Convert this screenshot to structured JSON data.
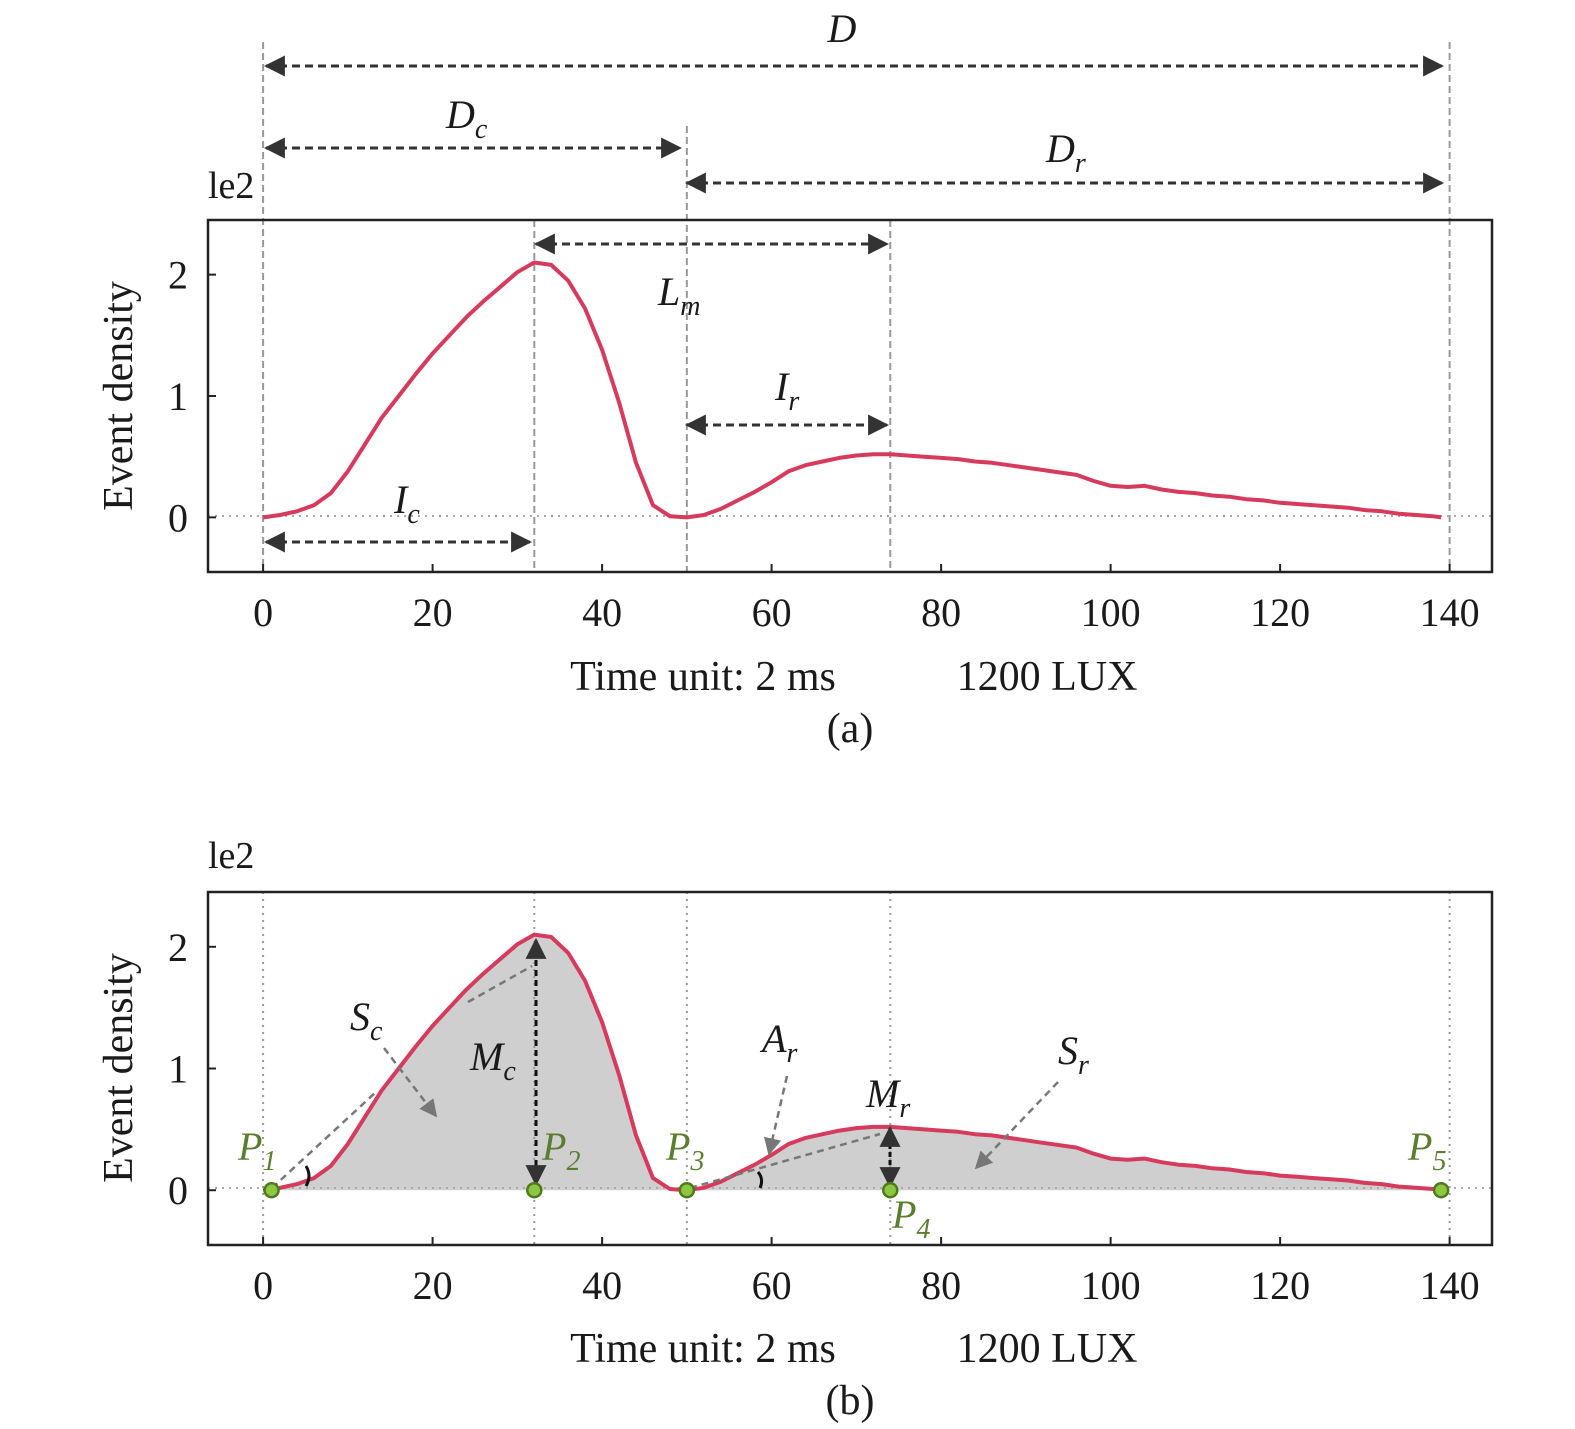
{
  "chart_data": [
    {
      "panel": "(a)",
      "type": "line",
      "caption": "(a)",
      "xlabel": "Time unit: 2 ms",
      "condition": "1200 LUX",
      "ylabel": "Event density",
      "y_multiplier": "le2",
      "xlim": [
        -6.5,
        145
      ],
      "ylim": [
        -0.45,
        2.45
      ],
      "xticks": [
        "0",
        "20",
        "40",
        "60",
        "80",
        "100",
        "120",
        "140"
      ],
      "yticks": [
        "0",
        "1",
        "2"
      ],
      "zero_line": "dotted",
      "series": [
        {
          "color": "#d63a5c",
          "x": [
            0,
            2,
            4,
            6,
            8,
            10,
            12,
            14,
            16,
            18,
            20,
            22,
            24,
            26,
            28,
            30,
            32,
            34,
            36,
            38,
            40,
            42,
            44,
            46,
            48,
            50,
            52,
            54,
            56,
            58,
            60,
            62,
            64,
            66,
            68,
            70,
            72,
            74,
            76,
            78,
            80,
            82,
            84,
            86,
            88,
            90,
            92,
            94,
            96,
            98,
            100,
            102,
            104,
            106,
            108,
            110,
            112,
            114,
            116,
            118,
            120,
            122,
            124,
            126,
            128,
            130,
            132,
            134,
            136,
            138,
            139
          ],
          "y": [
            0,
            0.02,
            0.05,
            0.1,
            0.2,
            0.38,
            0.6,
            0.82,
            1.0,
            1.18,
            1.35,
            1.5,
            1.65,
            1.78,
            1.9,
            2.02,
            2.1,
            2.08,
            1.95,
            1.72,
            1.38,
            0.95,
            0.45,
            0.1,
            0.01,
            0.0,
            0.02,
            0.07,
            0.14,
            0.21,
            0.29,
            0.38,
            0.43,
            0.46,
            0.49,
            0.51,
            0.52,
            0.52,
            0.51,
            0.5,
            0.49,
            0.48,
            0.46,
            0.45,
            0.43,
            0.41,
            0.39,
            0.37,
            0.35,
            0.3,
            0.26,
            0.25,
            0.26,
            0.23,
            0.21,
            0.2,
            0.18,
            0.17,
            0.15,
            0.14,
            0.12,
            0.11,
            0.1,
            0.09,
            0.08,
            0.06,
            0.05,
            0.03,
            0.02,
            0.01,
            0.0
          ]
        }
      ],
      "vlines_x": [
        0,
        32,
        50,
        74,
        140
      ],
      "annotations": {
        "D": {
          "label": "D",
          "from": 0,
          "to": 140
        },
        "Dc": {
          "label": "D",
          "sub": "c",
          "from": 0,
          "to": 50
        },
        "Dr": {
          "label": "D",
          "sub": "r",
          "from": 50,
          "to": 140
        },
        "Lm": {
          "label": "L",
          "sub": "m",
          "from": 32,
          "to": 74
        },
        "Ir": {
          "label": "I",
          "sub": "r",
          "from": 50,
          "to": 74
        },
        "Ic": {
          "label": "I",
          "sub": "c",
          "from": 0,
          "to": 32
        }
      }
    },
    {
      "panel": "(b)",
      "type": "area",
      "caption": "(b)",
      "xlabel": "Time unit: 2 ms",
      "condition": "1200 LUX",
      "ylabel": "Event density",
      "y_multiplier": "le2",
      "xlim": [
        -6.5,
        145
      ],
      "ylim": [
        -0.45,
        2.45
      ],
      "xticks": [
        "0",
        "20",
        "40",
        "60",
        "80",
        "100",
        "120",
        "140"
      ],
      "yticks": [
        "0",
        "1",
        "2"
      ],
      "fill_color": "#cfcfcf",
      "vlines_x": [
        0,
        32,
        50,
        74,
        140
      ],
      "points": [
        {
          "label": "P",
          "sub": "1",
          "x": 1,
          "y": 0
        },
        {
          "label": "P",
          "sub": "2",
          "x": 32,
          "y": 0
        },
        {
          "label": "P",
          "sub": "3",
          "x": 50,
          "y": 0
        },
        {
          "label": "P",
          "sub": "4",
          "x": 74,
          "y": 0
        },
        {
          "label": "P",
          "sub": "5",
          "x": 139,
          "y": 0
        }
      ],
      "annotations": {
        "Sc": {
          "label": "S",
          "sub": "c"
        },
        "Mc": {
          "label": "M",
          "sub": "c"
        },
        "Ar": {
          "label": "A",
          "sub": "r"
        },
        "Mr": {
          "label": "M",
          "sub": "r"
        },
        "Sr": {
          "label": "S",
          "sub": "r"
        }
      }
    }
  ]
}
